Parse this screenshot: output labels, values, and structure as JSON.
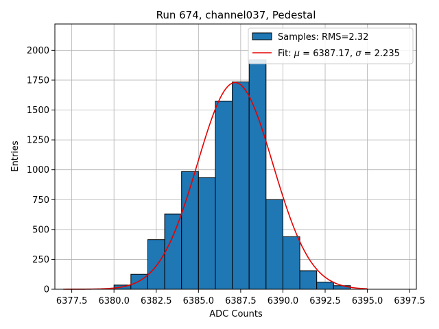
{
  "chart_data": {
    "type": "bar",
    "title": "Run 674, channel037, Pedestal",
    "xlabel": "ADC Counts",
    "ylabel": "Entries",
    "xlim": [
      6376.5,
      6397.9
    ],
    "ylim": [
      0,
      2220
    ],
    "xticks": [
      6377.5,
      6380.0,
      6382.5,
      6385.0,
      6387.5,
      6390.0,
      6392.5,
      6395.0,
      6397.5
    ],
    "xtick_labels": [
      "6377.5",
      "6380.0",
      "6382.5",
      "6385.0",
      "6387.5",
      "6390.0",
      "6392.5",
      "6395.0",
      "6397.5"
    ],
    "yticks": [
      0,
      250,
      500,
      750,
      1000,
      1250,
      1500,
      1750,
      2000
    ],
    "ytick_labels": [
      "0",
      "250",
      "500",
      "750",
      "1000",
      "1250",
      "1500",
      "1750",
      "2000"
    ],
    "grid": true,
    "legend_position": "top-right",
    "histogram": {
      "name": "Samples: RMS=2.32",
      "color": "#1f77b4",
      "edgecolor": "#000000",
      "bin_edges": [
        6377.0,
        6378.0,
        6379.0,
        6380.0,
        6381.0,
        6382.0,
        6383.0,
        6384.0,
        6385.0,
        6386.0,
        6387.0,
        6388.0,
        6389.0,
        6390.0,
        6391.0,
        6392.0,
        6393.0,
        6394.0,
        6395.0,
        6396.0,
        6397.0
      ],
      "counts": [
        0,
        0,
        0,
        35,
        125,
        415,
        630,
        985,
        935,
        1575,
        1735,
        1920,
        750,
        440,
        155,
        60,
        30,
        0,
        0,
        0
      ]
    },
    "fit": {
      "name_prefix": "Fit: ",
      "mu_label": "μ",
      "mu_value": " = 6387.17, ",
      "sigma_label": "σ",
      "sigma_value": " = 2.235",
      "color": "#e60000",
      "mu": 6387.17,
      "sigma": 2.235,
      "amplitude": 1730,
      "x_range": [
        6377.0,
        6395.0
      ]
    }
  }
}
